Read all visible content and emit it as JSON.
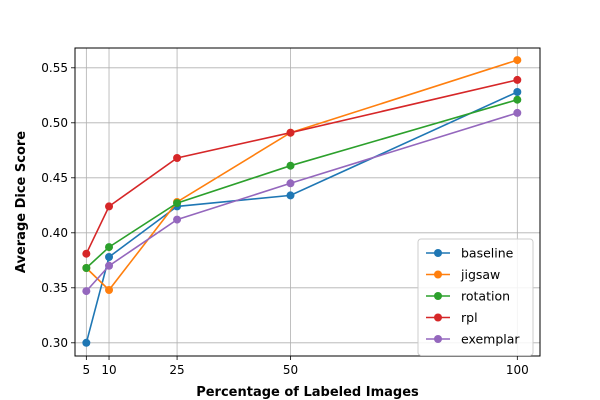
{
  "chart_data": {
    "type": "line",
    "xlabel": "Percentage of Labeled Images",
    "ylabel": "Average Dice Score",
    "x": [
      5,
      10,
      25,
      50,
      100
    ],
    "xticks": [
      "5",
      "10",
      "25",
      "50",
      "100"
    ],
    "yticks": [
      "0.30",
      "0.35",
      "0.40",
      "0.45",
      "0.50",
      "0.55"
    ],
    "xlim": [
      2.5,
      105
    ],
    "ylim": [
      0.288,
      0.568
    ],
    "grid": true,
    "legend_position": "lower-right",
    "series": [
      {
        "name": "baseline",
        "color": "#1f77b4",
        "values": [
          0.3,
          0.378,
          0.424,
          0.434,
          0.528
        ]
      },
      {
        "name": "jigsaw",
        "color": "#ff7f0e",
        "values": [
          0.368,
          0.348,
          0.428,
          0.491,
          0.557
        ]
      },
      {
        "name": "rotation",
        "color": "#2ca02c",
        "values": [
          0.368,
          0.387,
          0.427,
          0.461,
          0.521
        ]
      },
      {
        "name": "rpl",
        "color": "#d62728",
        "values": [
          0.381,
          0.424,
          0.468,
          0.491,
          0.539
        ]
      },
      {
        "name": "exemplar",
        "color": "#9467bd",
        "values": [
          0.347,
          0.37,
          0.412,
          0.445,
          0.509
        ]
      }
    ]
  }
}
